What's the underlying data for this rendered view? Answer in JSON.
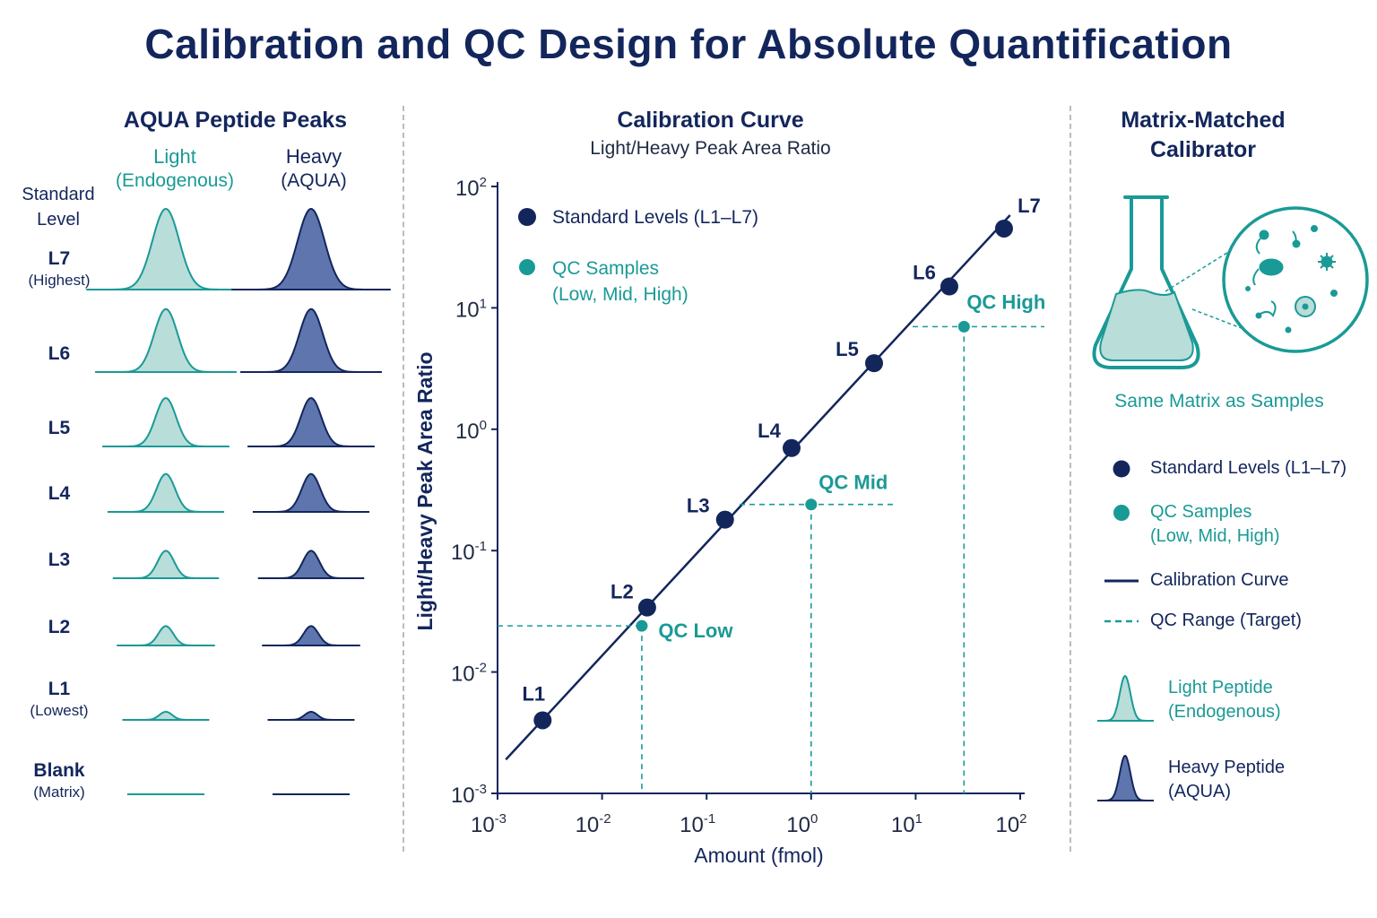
{
  "title": "Calibration and QC Design for Absolute Quantification",
  "colors": {
    "navy": "#13265c",
    "teal": "#1a9a96",
    "light_fill": "#b9ddd9",
    "heavy_fill": "#5e76ad",
    "dashed_divider": "#b7bcc4"
  },
  "left_panel": {
    "title": "AQUA Peptide Peaks",
    "light_header": {
      "main": "Light",
      "sub": "(Endogenous)"
    },
    "heavy_header": {
      "main": "Heavy",
      "sub": "(AQUA)"
    },
    "standard_level_header": "Standard Level",
    "levels": [
      {
        "name": "L7",
        "sub": "(Highest)",
        "peak_fraction": 1.0
      },
      {
        "name": "L6",
        "sub": "",
        "peak_fraction": 0.78
      },
      {
        "name": "L5",
        "sub": "",
        "peak_fraction": 0.6
      },
      {
        "name": "L4",
        "sub": "",
        "peak_fraction": 0.47
      },
      {
        "name": "L3",
        "sub": "",
        "peak_fraction": 0.34
      },
      {
        "name": "L2",
        "sub": "",
        "peak_fraction": 0.24
      },
      {
        "name": "L1",
        "sub": "(Lowest)",
        "peak_fraction": 0.1
      },
      {
        "name": "Blank",
        "sub": "(Matrix)",
        "peak_fraction": 0.0
      }
    ]
  },
  "chart_data": {
    "type": "scatter",
    "title": "Calibration Curve",
    "subtitle": "Light/Heavy Peak Area Ratio",
    "xlabel": "Amount (fmol)",
    "ylabel": "Light/Heavy Peak Area Ratio",
    "x_scale": "log",
    "y_scale": "log",
    "xlim": [
      0.001,
      100
    ],
    "ylim": [
      0.001,
      100
    ],
    "x_tick_exponents": [
      "-3",
      "-2",
      "-1",
      "0",
      "1",
      "2"
    ],
    "y_tick_exponents": [
      "-3",
      "-2",
      "-1",
      "0",
      "1",
      "2"
    ],
    "tick_base": "10",
    "series": [
      {
        "name": "Standard Levels (L1–L7)",
        "labels": [
          "L1",
          "L2",
          "L3",
          "L4",
          "L5",
          "L6",
          "L7"
        ],
        "x": [
          0.0027,
          0.027,
          0.15,
          0.65,
          4.0,
          21,
          70
        ],
        "y": [
          0.004,
          0.034,
          0.18,
          0.7,
          3.5,
          15,
          45
        ]
      },
      {
        "name": "QC Samples (Low, Mid, High)",
        "labels": [
          "QC Low",
          "QC Mid",
          "QC High"
        ],
        "x": [
          0.024,
          1.0,
          29
        ],
        "y": [
          0.024,
          0.24,
          7.0
        ]
      }
    ],
    "fit_line": {
      "x": [
        0.0012,
        80
      ],
      "y": [
        0.0019,
        58
      ]
    },
    "legend": [
      "Standard Levels (L1–L7)",
      "QC Samples",
      "(Low, Mid, High)"
    ],
    "legend_placement": "top-left"
  },
  "right_panel": {
    "title": "Matrix-Matched Calibrator",
    "caption": "Same Matrix as Samples",
    "legend": [
      {
        "key": "std",
        "text": "Standard Levels (L1–L7)"
      },
      {
        "key": "qc",
        "text": "QC Samples",
        "text2": "(Low, Mid, High)"
      },
      {
        "key": "curve",
        "text": "Calibration Curve"
      },
      {
        "key": "qcrange",
        "text": "QC Range (Target)"
      },
      {
        "key": "light",
        "text": "Light Peptide",
        "text2": "(Endogenous)"
      },
      {
        "key": "heavy",
        "text": "Heavy Peptide",
        "text2": "(AQUA)"
      }
    ]
  }
}
